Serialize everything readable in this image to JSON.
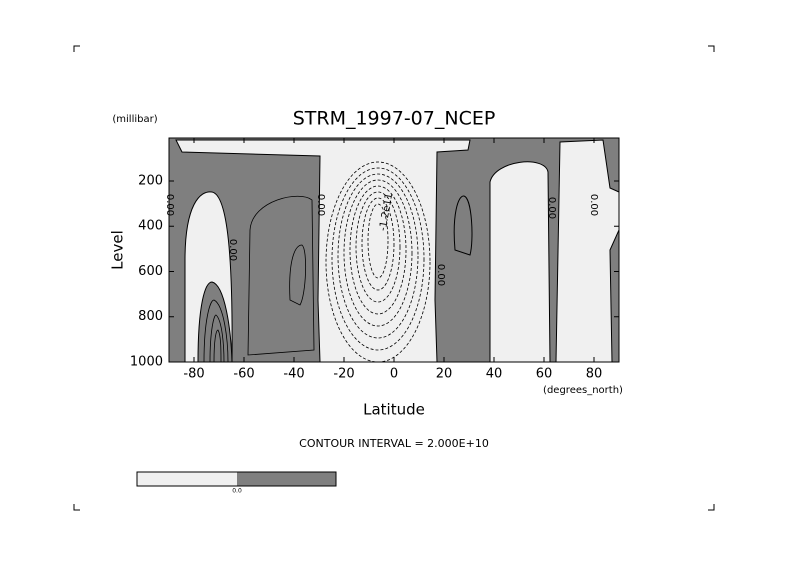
{
  "chart_data": {
    "type": "contour",
    "title": "STRM_1997-07_NCEP",
    "x_label": "Latitude",
    "y_label": "Level",
    "x_units": "(degrees_north)",
    "y_units": "(millibar)",
    "xlim": [
      -90,
      90
    ],
    "ylim": [
      1000,
      10
    ],
    "xticks": [
      -80,
      -60,
      -40,
      -20,
      0,
      20,
      40,
      60,
      80
    ],
    "yticks": [
      200,
      400,
      600,
      800,
      1000
    ],
    "footnote": "CONTOUR INTERVAL = 2.000E+10",
    "contour_labels": [
      "0.00",
      "0.00",
      "0.00",
      "-1.2e11",
      "0.00",
      "0.00",
      "0.00"
    ],
    "colorbar_label": "0.0"
  }
}
